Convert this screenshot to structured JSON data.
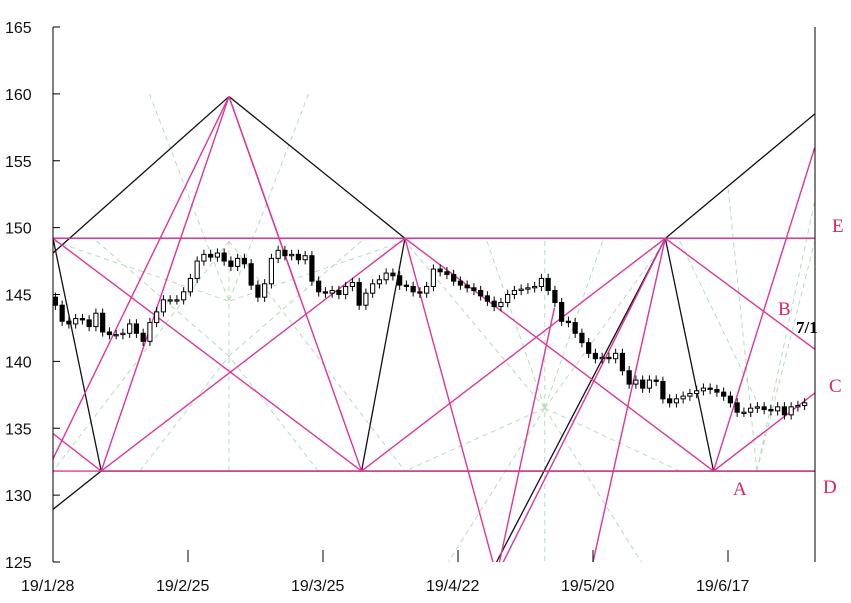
{
  "chart_data": {
    "type": "candlestick",
    "x_tick_labels": [
      "19/1/28",
      "19/2/25",
      "19/3/25",
      "19/4/22",
      "19/5/20",
      "19/6/17"
    ],
    "y_tick_labels": [
      "125",
      "130",
      "135",
      "140",
      "145",
      "150",
      "155",
      "160",
      "165"
    ],
    "ylim": [
      125,
      165
    ],
    "y_ticks": [
      125,
      130,
      135,
      140,
      145,
      150,
      155,
      160,
      165
    ],
    "x_ticks": [
      0,
      28,
      56,
      84,
      112,
      140
    ],
    "x_range": [
      0,
      158
    ],
    "grid": false,
    "colors": {
      "overlay_lines": "#e0359a",
      "frame_lines": "#111111",
      "guide_lines": "#b8dcc0",
      "candle_up_fill": "#ffffff",
      "candle_down_fill": "#000000"
    },
    "series": [
      {
        "values": [
          144.2,
          143.0,
          142.8,
          143.2,
          143.1,
          142.6,
          143.6,
          142.2,
          142.0,
          142.0,
          142.1,
          142.8,
          142.1,
          141.5,
          142.9,
          143.7,
          144.6,
          144.6,
          144.6,
          145.2,
          146.2,
          147.5,
          148.0,
          147.8,
          148.1,
          147.5,
          147.1,
          147.7,
          147.3,
          145.7,
          144.8,
          145.8,
          147.7,
          148.3,
          147.9,
          148.0,
          147.6,
          147.9,
          146.0,
          145.2,
          145.1,
          145.3,
          145.0,
          145.6,
          145.9,
          144.2,
          145.1,
          145.8,
          146.1,
          146.6,
          146.4,
          145.7,
          145.6,
          145.2,
          145.1,
          145.6,
          146.9,
          146.7,
          146.5,
          146.0,
          145.7,
          145.5,
          145.3,
          144.9,
          144.5,
          144.1,
          144.4,
          145.0,
          145.3,
          145.4,
          145.5,
          145.6,
          146.2,
          145.3,
          144.4,
          143.0,
          142.9,
          142.1,
          141.4,
          140.6,
          140.2,
          140.3,
          140.2,
          140.6,
          139.3,
          138.3,
          138.6,
          138.0,
          138.6,
          138.5,
          137.2,
          136.9,
          137.2,
          137.4,
          137.6,
          137.8,
          138.0,
          137.9,
          137.7,
          137.4,
          136.9,
          136.2,
          136.2,
          136.5,
          136.6,
          136.4,
          136.3,
          136.6,
          136.0,
          136.6,
          136.7,
          136.9
        ]
      }
    ],
    "annotations": [
      "A",
      "B",
      "C",
      "D",
      "E",
      "7/1"
    ]
  }
}
